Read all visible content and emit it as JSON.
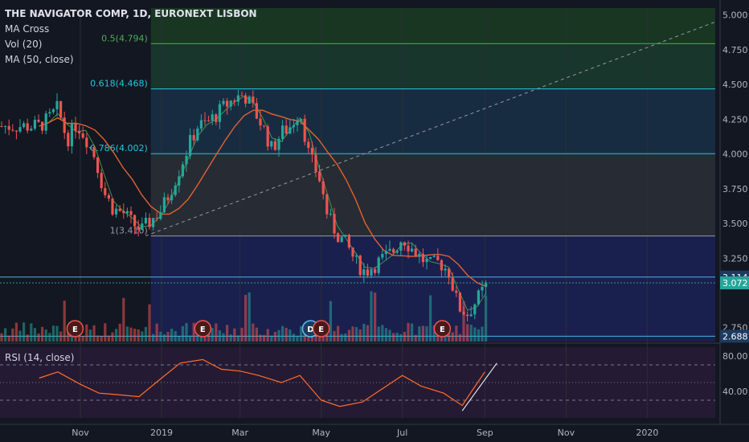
{
  "legend": {
    "title": "THE NAVIGATOR COMP, 1D, EURONEXT LISBON",
    "ind1": "MA Cross",
    "ind2": "Vol (20)",
    "ind3": "MA (50, close)"
  },
  "rsi_label": "RSI (14, close)",
  "colors": {
    "bg": "#131722",
    "up": "#26a69a",
    "down": "#ef5350",
    "ma50": "#e0622f",
    "ma_fast": "#4caf50",
    "rsi": "#ff6d2b",
    "trend": "#9598a1"
  },
  "chart_data": [
    {
      "type": "candlestick",
      "x_ticks": [
        "Nov",
        "2019",
        "Mar",
        "May",
        "Jul",
        "Sep",
        "Nov",
        "2020"
      ],
      "y_ticks": [
        "5.000",
        "4.750",
        "4.500",
        "4.250",
        "4.000",
        "3.750",
        "3.500",
        "3.250",
        "2.750"
      ],
      "ylim": [
        2.65,
        5.05
      ],
      "fib_levels": [
        {
          "label": "0.5(4.794)",
          "value": 4.794,
          "color": "#4caf50"
        },
        {
          "label": "0.618(4.468)",
          "value": 4.468,
          "color": "#26c6da"
        },
        {
          "label": "0.786(4.002)",
          "value": 4.002,
          "color": "#26c6da"
        },
        {
          "label": "1(3.410)",
          "value": 3.41,
          "color": "#9598a1"
        }
      ],
      "price_tags": [
        {
          "label": "3.114",
          "value": 3.114,
          "color": "#1e3a5f"
        },
        {
          "label": "3.072",
          "value": 3.072,
          "color": "#26a69a"
        },
        {
          "label": "2.688",
          "value": 2.688,
          "color": "#1e3a5f"
        }
      ],
      "close_series": [
        [
          "2018-10-01",
          4.2
        ],
        [
          "2018-10-08",
          4.25
        ],
        [
          "2018-10-15",
          4.33
        ],
        [
          "2018-10-22",
          4.1
        ],
        [
          "2018-10-29",
          4.22
        ],
        [
          "2018-11-05",
          4.12
        ],
        [
          "2018-11-12",
          3.98
        ],
        [
          "2018-11-19",
          3.72
        ],
        [
          "2018-11-26",
          3.6
        ],
        [
          "2018-12-03",
          3.58
        ],
        [
          "2018-12-10",
          3.5
        ],
        [
          "2018-12-17",
          3.45
        ],
        [
          "2018-12-24",
          3.52
        ],
        [
          "2019-01-01",
          3.6
        ],
        [
          "2019-01-07",
          3.72
        ],
        [
          "2019-01-14",
          3.88
        ],
        [
          "2019-01-21",
          4.05
        ],
        [
          "2019-01-28",
          4.2
        ],
        [
          "2019-02-04",
          4.22
        ],
        [
          "2019-02-11",
          4.28
        ],
        [
          "2019-02-18",
          4.35
        ],
        [
          "2019-02-25",
          4.4
        ],
        [
          "2019-03-04",
          4.43
        ],
        [
          "2019-03-11",
          4.32
        ],
        [
          "2019-03-18",
          4.2
        ],
        [
          "2019-03-25",
          4.03
        ],
        [
          "2019-04-01",
          4.15
        ],
        [
          "2019-04-08",
          4.2
        ],
        [
          "2019-04-15",
          4.32
        ],
        [
          "2019-04-22",
          3.98
        ],
        [
          "2019-04-29",
          3.85
        ],
        [
          "2019-05-06",
          3.55
        ],
        [
          "2019-05-13",
          3.42
        ],
        [
          "2019-05-20",
          3.35
        ],
        [
          "2019-05-27",
          3.22
        ],
        [
          "2019-06-03",
          3.15
        ],
        [
          "2019-06-10",
          3.2
        ],
        [
          "2019-06-17",
          3.25
        ],
        [
          "2019-06-24",
          3.3
        ],
        [
          "2019-07-01",
          3.4
        ],
        [
          "2019-07-08",
          3.32
        ],
        [
          "2019-07-15",
          3.25
        ],
        [
          "2019-07-22",
          3.2
        ],
        [
          "2019-07-29",
          3.22
        ],
        [
          "2019-08-05",
          3.15
        ],
        [
          "2019-08-12",
          2.9
        ],
        [
          "2019-08-19",
          2.85
        ],
        [
          "2019-08-26",
          2.95
        ],
        [
          "2019-09-02",
          3.05
        ]
      ],
      "events": [
        {
          "label": "E",
          "date": "2018-10-28"
        },
        {
          "label": "E",
          "date": "2019-02-01"
        },
        {
          "label": "D",
          "date": "2019-04-23"
        },
        {
          "label": "E",
          "date": "2019-05-01"
        },
        {
          "label": "E",
          "date": "2019-07-31"
        }
      ]
    },
    {
      "type": "line",
      "name": "RSI (14, close)",
      "y_ticks": [
        "80.00",
        "40.00"
      ],
      "ylim": [
        10,
        90
      ],
      "bands": [
        70,
        50,
        30
      ],
      "values": [
        [
          "2018-10-01",
          55
        ],
        [
          "2018-10-15",
          62
        ],
        [
          "2018-11-01",
          48
        ],
        [
          "2018-11-15",
          38
        ],
        [
          "2018-12-01",
          36
        ],
        [
          "2018-12-15",
          34
        ],
        [
          "2019-01-01",
          55
        ],
        [
          "2019-01-15",
          72
        ],
        [
          "2019-02-01",
          76
        ],
        [
          "2019-02-15",
          65
        ],
        [
          "2019-03-01",
          63
        ],
        [
          "2019-03-15",
          58
        ],
        [
          "2019-04-01",
          50
        ],
        [
          "2019-04-15",
          58
        ],
        [
          "2019-05-01",
          30
        ],
        [
          "2019-05-15",
          23
        ],
        [
          "2019-06-01",
          28
        ],
        [
          "2019-06-15",
          42
        ],
        [
          "2019-07-01",
          58
        ],
        [
          "2019-07-15",
          46
        ],
        [
          "2019-08-01",
          38
        ],
        [
          "2019-08-15",
          24
        ],
        [
          "2019-08-22",
          40
        ],
        [
          "2019-09-01",
          62
        ]
      ]
    }
  ]
}
